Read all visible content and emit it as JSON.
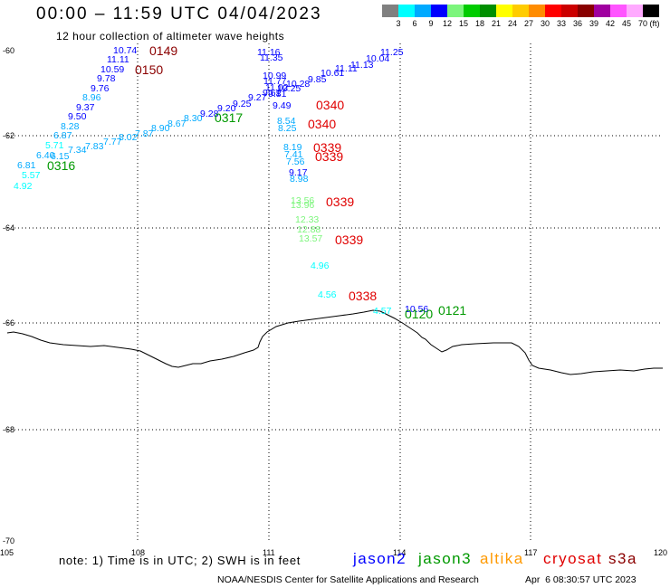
{
  "title": "00:00 – 11:59 UTC 04/04/2023",
  "subtitle": "12 hour collection of altimeter wave heights",
  "legend": {
    "labels": [
      "3",
      "6",
      "9",
      "12",
      "15",
      "18",
      "21",
      "24",
      "27",
      "30",
      "33",
      "36",
      "39",
      "42",
      "45",
      "70"
    ],
    "unit": "(ft)",
    "colors": [
      "#808080",
      "#00ffff",
      "#00aaff",
      "#0000ff",
      "#7cf57c",
      "#00cc00",
      "#008f00",
      "#ffff00",
      "#ffcc00",
      "#ff8c00",
      "#ff0000",
      "#cc0000",
      "#880000",
      "#a000a0",
      "#ff55ff",
      "#ffaaff",
      "#000000"
    ]
  },
  "axes": {
    "latitude_labels": [
      "-60",
      "-62",
      "-64",
      "-66",
      "-68",
      "-70"
    ],
    "longitude_labels": [
      "105",
      "108",
      "111",
      "114",
      "117",
      "120"
    ]
  },
  "satellites": [
    {
      "name": "jason2",
      "color": "#0000ff",
      "passes": []
    },
    {
      "name": "jason3",
      "color": "#009900",
      "passes": [
        {
          "times": [
            "0316",
            "0317"
          ],
          "swh": [
            "4.92",
            "5.57",
            "6.15",
            "7.34",
            "7.83",
            "7.77",
            "8.02",
            "7.87",
            "8.90",
            "8.67",
            "8.30",
            "9.28",
            "9.20",
            "9.25",
            "9.27",
            "9.61",
            "10.28",
            "9.85",
            "10.61",
            "11.11",
            "11.13",
            "10.04",
            "11.25"
          ]
        },
        {
          "times": [
            "0120",
            "0121"
          ],
          "swh": [
            "10.56"
          ]
        }
      ]
    },
    {
      "name": "altika",
      "color": "#ff9900",
      "passes": []
    },
    {
      "name": "cryosat",
      "color": "#e00000",
      "passes": [
        {
          "times": [
            "0340",
            "0340",
            "0339",
            "0339",
            "0339",
            "0339",
            "0338"
          ],
          "swh": [
            "11.16",
            "11.35",
            "10.99",
            "11.77",
            "11.02",
            "10.25",
            "9.81",
            "9.49",
            "8.54",
            "8.25",
            "8.19",
            "7.41",
            "7.56",
            "9.17",
            "8.98",
            "13.56",
            "13.96",
            "12.33",
            "12.88",
            "13.57",
            "4.96",
            "4.56",
            "4.57"
          ]
        }
      ]
    },
    {
      "name": "s3a",
      "color": "#8b0000",
      "passes": [
        {
          "times": [
            "0149",
            "0150"
          ],
          "swh": [
            "10.74",
            "11.11",
            "10.59",
            "9.78",
            "9.76",
            "8.96",
            "9.37",
            "9.50",
            "8.28",
            "6.87",
            "5.71",
            "6.40",
            "6.81"
          ]
        }
      ]
    }
  ],
  "note": "note: 1) Time is in UTC; 2) SWH is in feet",
  "credit": "NOAA/NESDIS Center for Satellite Applications and Research",
  "generated": "Apr  6 08:30:57 UTC 2023"
}
